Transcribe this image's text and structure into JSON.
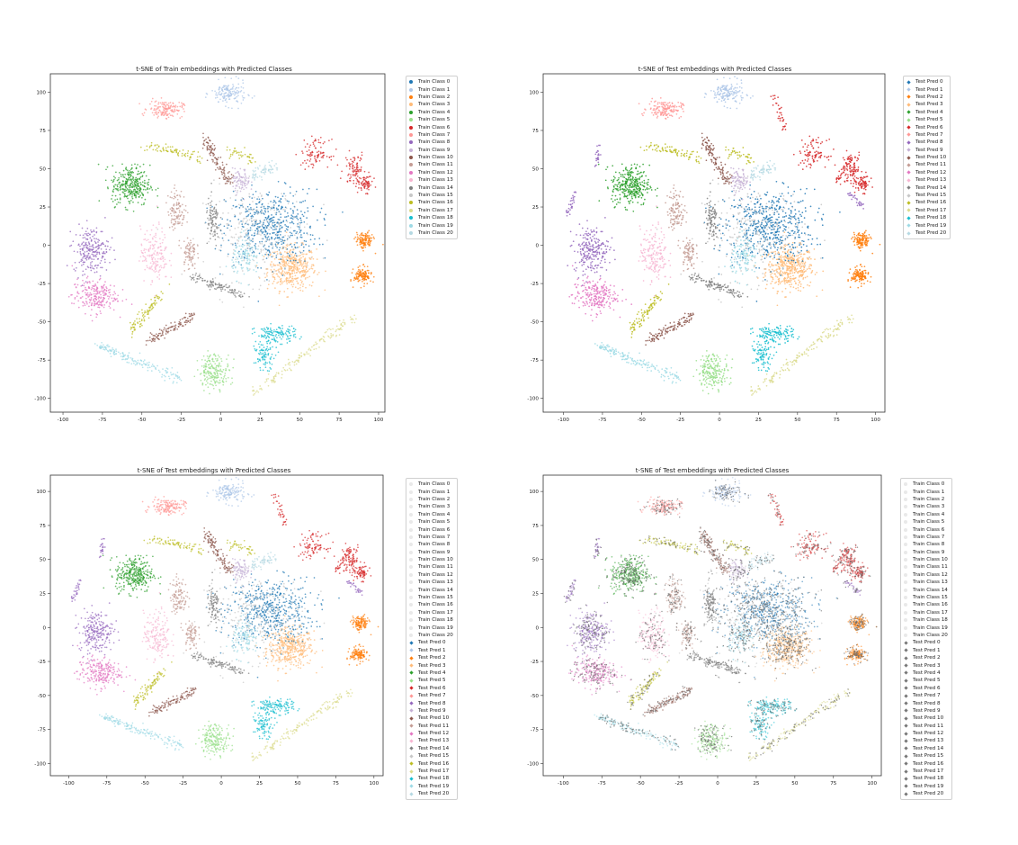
{
  "palette": [
    "#1f77b4",
    "#aec7e8",
    "#ff7f0e",
    "#ffbb78",
    "#2ca02c",
    "#98df8a",
    "#d62728",
    "#ff9896",
    "#9467bd",
    "#c5b0d5",
    "#8c564b",
    "#c49c94",
    "#e377c2",
    "#f7b6d2",
    "#7f7f7f",
    "#c7c7c7",
    "#bcbd22",
    "#dbdb8d",
    "#17becf",
    "#9edae5",
    "#b5d9e3"
  ],
  "chart_data": [
    {
      "type": "scatter",
      "title": "t-SNE of Train embeddings with Predicted Classes",
      "xlabel": "",
      "ylabel": "",
      "xlim": [
        -108,
        104
      ],
      "ylim": [
        -109,
        112
      ],
      "xticks": [
        -100,
        -75,
        -50,
        -25,
        0,
        25,
        50,
        75,
        100
      ],
      "yticks": [
        -100,
        -75,
        -50,
        -25,
        0,
        25,
        50,
        75,
        100
      ],
      "grid": false,
      "legend_placement": "outside-top-right",
      "series_style": "train",
      "legend": [
        "Train Class 0",
        "Train Class 1",
        "Train Class 2",
        "Train Class 3",
        "Train Class 4",
        "Train Class 5",
        "Train Class 6",
        "Train Class 7",
        "Train Class 8",
        "Train Class 9",
        "Train Class 10",
        "Train Class 11",
        "Train Class 12",
        "Train Class 13",
        "Train Class 14",
        "Train Class 15",
        "Train Class 16",
        "Train Class 17",
        "Train Class 18",
        "Train Class 19",
        "Train Class 20"
      ]
    },
    {
      "type": "scatter",
      "title": "t-SNE of Test embeddings with Predicted Classes",
      "xlabel": "",
      "ylabel": "",
      "xlim": [
        -113,
        106
      ],
      "ylim": [
        -109,
        112
      ],
      "xticks": [
        -100,
        -75,
        -50,
        -25,
        0,
        25,
        50,
        75,
        100
      ],
      "yticks": [
        -100,
        -75,
        -50,
        -25,
        0,
        25,
        50,
        75,
        100
      ],
      "grid": false,
      "legend_placement": "outside-top-right",
      "series_style": "test",
      "legend": [
        "Test Pred 0",
        "Test Pred 1",
        "Test Pred 2",
        "Test Pred 3",
        "Test Pred 4",
        "Test Pred 5",
        "Test Pred 6",
        "Test Pred 7",
        "Test Pred 8",
        "Test Pred 9",
        "Test Pred 10",
        "Test Pred 11",
        "Test Pred 12",
        "Test Pred 13",
        "Test Pred 14",
        "Test Pred 15",
        "Test Pred 16",
        "Test Pred 17",
        "Test Pred 18",
        "Test Pred 19",
        "Test Pred 20"
      ]
    },
    {
      "type": "scatter",
      "title": "t-SNE of Test embeddings with Predicted Classes",
      "xlabel": "",
      "ylabel": "",
      "xlim": [
        -112,
        106
      ],
      "ylim": [
        -109,
        112
      ],
      "xticks": [
        -100,
        -75,
        -50,
        -25,
        0,
        25,
        50,
        75,
        100
      ],
      "yticks": [
        -100,
        -75,
        -50,
        -25,
        0,
        25,
        50,
        75,
        100
      ],
      "grid": false,
      "legend_placement": "outside-top-right",
      "series_style": "overlay",
      "legend": [
        "Train Class 0",
        "Train Class 1",
        "Train Class 2",
        "Train Class 3",
        "Train Class 4",
        "Train Class 5",
        "Train Class 6",
        "Train Class 7",
        "Train Class 8",
        "Train Class 9",
        "Train Class 10",
        "Train Class 11",
        "Train Class 12",
        "Train Class 13",
        "Train Class 14",
        "Train Class 15",
        "Train Class 16",
        "Train Class 17",
        "Train Class 18",
        "Train Class 19",
        "Train Class 20",
        "Test Pred 0",
        "Test Pred 1",
        "Test Pred 2",
        "Test Pred 3",
        "Test Pred 4",
        "Test Pred 5",
        "Test Pred 6",
        "Test Pred 7",
        "Test Pred 8",
        "Test Pred 9",
        "Test Pred 10",
        "Test Pred 11",
        "Test Pred 12",
        "Test Pred 13",
        "Test Pred 14",
        "Test Pred 15",
        "Test Pred 16",
        "Test Pred 17",
        "Test Pred 18",
        "Test Pred 19",
        "Test Pred 20"
      ]
    },
    {
      "type": "scatter",
      "title": "t-SNE of Test embeddings with Predicted Classes",
      "xlabel": "",
      "ylabel": "",
      "xlim": [
        -113,
        106
      ],
      "ylim": [
        -109,
        112
      ],
      "xticks": [
        -100,
        -75,
        -50,
        -25,
        0,
        25,
        50,
        75,
        100
      ],
      "yticks": [
        -100,
        -75,
        -50,
        -25,
        0,
        25,
        50,
        75,
        100
      ],
      "grid": false,
      "legend_placement": "outside-top-right",
      "series_style": "gray-overlay",
      "legend": [
        "Train Class 0",
        "Train Class 1",
        "Train Class 2",
        "Train Class 3",
        "Train Class 4",
        "Train Class 5",
        "Train Class 6",
        "Train Class 7",
        "Train Class 8",
        "Train Class 9",
        "Train Class 10",
        "Train Class 11",
        "Train Class 12",
        "Train Class 13",
        "Train Class 14",
        "Train Class 15",
        "Train Class 16",
        "Train Class 17",
        "Train Class 18",
        "Train Class 19",
        "Train Class 20",
        "Test Pred 0",
        "Test Pred 1",
        "Test Pred 2",
        "Test Pred 3",
        "Test Pred 4",
        "Test Pred 5",
        "Test Pred 6",
        "Test Pred 7",
        "Test Pred 8",
        "Test Pred 9",
        "Test Pred 10",
        "Test Pred 11",
        "Test Pred 12",
        "Test Pred 13",
        "Test Pred 14",
        "Test Pred 15",
        "Test Pred 16",
        "Test Pred 17",
        "Test Pred 18",
        "Test Pred 19",
        "Test Pred 20"
      ]
    }
  ],
  "clusters": [
    {
      "class": 3,
      "x": 45,
      "y": -15,
      "rx": 14,
      "ry": 13,
      "n": 420
    },
    {
      "class": 0,
      "x": 32,
      "y": 12,
      "rx": 26,
      "ry": 22,
      "n": 520
    },
    {
      "class": 15,
      "x": 22,
      "y": 8,
      "rx": 30,
      "ry": 28,
      "n": 260
    },
    {
      "class": 1,
      "x": 5,
      "y": 99,
      "rx": 10,
      "ry": 7,
      "n": 150
    },
    {
      "class": 7,
      "x": -35,
      "y": 89,
      "rx": 10,
      "ry": 5,
      "n": 150
    },
    {
      "class": 4,
      "x": -57,
      "y": 39,
      "rx": 11,
      "ry": 12,
      "n": 320
    },
    {
      "class": 8,
      "x": -82,
      "y": -3,
      "rx": 10,
      "ry": 14,
      "n": 230
    },
    {
      "class": 12,
      "x": -80,
      "y": -33,
      "rx": 13,
      "ry": 10,
      "n": 230
    },
    {
      "class": 13,
      "x": -42,
      "y": -6,
      "rx": 8,
      "ry": 16,
      "n": 170
    },
    {
      "class": 11,
      "x": -28,
      "y": 23,
      "rx": 5,
      "ry": 12,
      "n": 110
    },
    {
      "class": 11,
      "x": -20,
      "y": -5,
      "rx": 4,
      "ry": 10,
      "n": 80
    },
    {
      "class": 9,
      "x": 13,
      "y": 42,
      "rx": 5,
      "ry": 7,
      "n": 80
    },
    {
      "class": 19,
      "x": 16,
      "y": -8,
      "rx": 8,
      "ry": 12,
      "n": 120
    },
    {
      "class": 14,
      "x": -5,
      "y": 15,
      "rx": 4,
      "ry": 14,
      "n": 90
    },
    {
      "class": 6,
      "x": 85,
      "y": 50,
      "rx": 6,
      "ry": 10,
      "n": 90
    },
    {
      "class": 6,
      "x": 60,
      "y": 60,
      "rx": 8,
      "ry": 8,
      "n": 90
    },
    {
      "class": 6,
      "x": 92,
      "y": 40,
      "rx": 4,
      "ry": 5,
      "n": 60
    },
    {
      "class": 2,
      "x": 91,
      "y": 3,
      "rx": 5,
      "ry": 5,
      "n": 130
    },
    {
      "class": 2,
      "x": 90,
      "y": -20,
      "rx": 5,
      "ry": 5,
      "n": 130
    },
    {
      "class": 18,
      "x": 35,
      "y": -58,
      "rx": 12,
      "ry": 5,
      "n": 130
    },
    {
      "class": 18,
      "x": 28,
      "y": -72,
      "rx": 6,
      "ry": 8,
      "n": 90
    },
    {
      "class": 5,
      "x": -4,
      "y": -82,
      "rx": 9,
      "ry": 10,
      "n": 200
    }
  ],
  "strokes": [
    {
      "class": 16,
      "x1": -48,
      "y1": 65,
      "x2": -12,
      "y2": 57,
      "n": 80
    },
    {
      "class": 16,
      "x1": -58,
      "y1": -58,
      "x2": -35,
      "y2": -28,
      "n": 90
    },
    {
      "class": 10,
      "x1": -10,
      "y1": 70,
      "x2": 5,
      "y2": 40,
      "n": 120
    },
    {
      "class": 10,
      "x1": -45,
      "y1": -62,
      "x2": -15,
      "y2": -45,
      "n": 110
    },
    {
      "class": 14,
      "x1": -20,
      "y1": -20,
      "x2": 15,
      "y2": -33,
      "n": 110
    },
    {
      "class": 17,
      "x1": 20,
      "y1": -97,
      "x2": 85,
      "y2": -46,
      "n": 150
    },
    {
      "class": 19,
      "x1": -78,
      "y1": -65,
      "x2": -25,
      "y2": -88,
      "n": 160
    },
    {
      "class": 16,
      "x1": 5,
      "y1": 62,
      "x2": 22,
      "y2": 55,
      "n": 40
    },
    {
      "class": 20,
      "x1": 20,
      "y1": 45,
      "x2": 35,
      "y2": 52,
      "n": 60
    }
  ],
  "extra_test_strokes": [
    {
      "class": 8,
      "x1": -98,
      "y1": 20,
      "x2": -92,
      "y2": 35,
      "n": 30
    },
    {
      "class": 8,
      "x1": -80,
      "y1": 50,
      "x2": -77,
      "y2": 65,
      "n": 25
    },
    {
      "class": 6,
      "x1": 75,
      "y1": 40,
      "x2": 85,
      "y2": 60,
      "n": 40
    },
    {
      "class": 8,
      "x1": 82,
      "y1": 35,
      "x2": 93,
      "y2": 25,
      "n": 30
    },
    {
      "class": 6,
      "x1": 35,
      "y1": 98,
      "x2": 42,
      "y2": 75,
      "n": 35
    }
  ]
}
